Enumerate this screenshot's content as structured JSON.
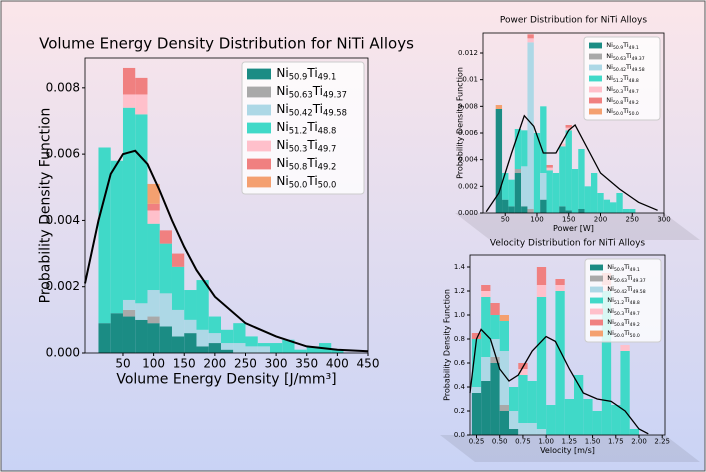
{
  "chart_data": [
    {
      "type": "histogram",
      "title": "Volume Energy Density Distribution for NiTi Alloys",
      "x_label": "Volume Energy Density [J/mm³]",
      "y_label": "Probability Density Function",
      "legend": "upper right",
      "bins": [
        10,
        30,
        50,
        70,
        90,
        110,
        130,
        150,
        170,
        190,
        210,
        230,
        250,
        270,
        290,
        310,
        330,
        350,
        370,
        390,
        410
      ],
      "xlim": [
        -12,
        450
      ],
      "xticks": [
        50,
        100,
        150,
        200,
        250,
        300,
        350,
        400,
        450
      ],
      "ylim": [
        0,
        0.0089
      ],
      "yticks": [
        {
          "value": 0,
          "label": "0.000"
        },
        0.002,
        0.004,
        0.006,
        0.008
      ],
      "series": [
        {
          "name": "Ni50.9Ti49.1",
          "color": "#1b8c84",
          "values": [
            0.0009,
            0.0012,
            0.0011,
            0.001,
            0.0009,
            0.0008,
            0.0005,
            0.0006,
            0.0002,
            0.0003,
            0.0001,
            0,
            0,
            0,
            0,
            0,
            0,
            0,
            0,
            0
          ]
        },
        {
          "name": "Ni50.63Ti49.37",
          "color": "#a9a9a9",
          "values": [
            0,
            0,
            0.0002,
            0,
            0.0002,
            0,
            0,
            0,
            0,
            0,
            0,
            0,
            0,
            0,
            0,
            0,
            0,
            0,
            0,
            0
          ]
        },
        {
          "name": "Ni50.42Ti49.58",
          "color": "#add8e6",
          "values": [
            0,
            0,
            0.0003,
            0.0005,
            0.0008,
            0.001,
            0.0008,
            0.0004,
            0.0005,
            0.0003,
            0.0002,
            0.0003,
            0.0002,
            0.0002,
            0,
            0,
            0,
            0,
            0,
            0
          ]
        },
        {
          "name": "Ni51.2Ti48.8",
          "color": "#40d9c8",
          "values": [
            0.0053,
            0.0046,
            0.0058,
            0.0057,
            0.002,
            0.0015,
            0.0013,
            0.0009,
            0.0015,
            0.0005,
            0.0004,
            0.0006,
            0.0003,
            0.0001,
            0.0003,
            0.0004,
            0.0001,
            0.0002,
            0.0003,
            0.0001
          ]
        },
        {
          "name": "Ni50.3Ti49.7",
          "color": "#ffc0cb",
          "values": [
            0,
            0,
            0.0004,
            0.0006,
            0.0004,
            0,
            0,
            0,
            0,
            0,
            0,
            0,
            0,
            0,
            0,
            0,
            0,
            0,
            0,
            0
          ]
        },
        {
          "name": "Ni50.8Ti49.2",
          "color": "#f08080",
          "values": [
            0,
            0,
            0.0008,
            0.0005,
            0.0002,
            0.0004,
            0.0004,
            0,
            0,
            0,
            0,
            0,
            0,
            0,
            0,
            0,
            0,
            0,
            0,
            0
          ]
        },
        {
          "name": "Ni50.0Ti50.0",
          "color": "#f4a070",
          "values": [
            0,
            0,
            0,
            0,
            0.0006,
            0,
            0,
            0,
            0,
            0,
            0,
            0,
            0,
            0,
            0,
            0,
            0,
            0,
            0,
            0
          ]
        }
      ],
      "kde": {
        "x": [
          -12,
          10,
          30,
          50,
          70,
          90,
          110,
          130,
          150,
          170,
          200,
          250,
          300,
          350,
          400,
          450
        ],
        "y": [
          0.0021,
          0.004,
          0.0054,
          0.006,
          0.0061,
          0.0057,
          0.0049,
          0.004,
          0.0032,
          0.0025,
          0.0017,
          0.0009,
          0.0005,
          0.0002,
          0.0001,
          5e-05
        ]
      }
    },
    {
      "type": "histogram",
      "title": "Power Distribution for NiTi Alloys",
      "x_label": "Power [W]",
      "y_label": "Probability Density Function",
      "legend": "upper right",
      "bins": [
        35,
        45,
        55,
        65,
        75,
        85,
        95,
        105,
        115,
        125,
        135,
        145,
        155,
        165,
        175,
        185,
        195,
        205,
        215,
        225,
        235,
        245,
        255
      ],
      "xlim": [
        15,
        300
      ],
      "xticks": [
        50,
        100,
        150,
        200,
        250,
        300
      ],
      "ylim": [
        0,
        0.0135
      ],
      "yticks": [
        {
          "value": 0,
          "label": "0.000"
        },
        0.002,
        0.004,
        0.006,
        0.008,
        0.01,
        0.012
      ],
      "series": [
        {
          "name": "Ni50.9Ti49.1",
          "color": "#1b8c84",
          "values": [
            0.0078,
            0.001,
            0.0005,
            0.003,
            0.0005,
            0,
            0,
            0.001,
            0,
            0,
            0.0005,
            0.0002,
            0,
            0.0003,
            0,
            0,
            0,
            0,
            0,
            0,
            0,
            0
          ]
        },
        {
          "name": "Ni50.63Ti49.37",
          "color": "#a9a9a9",
          "values": [
            0,
            0,
            0,
            0.0003,
            0,
            0.0003,
            0,
            0,
            0,
            0,
            0,
            0,
            0,
            0,
            0,
            0,
            0,
            0,
            0,
            0,
            0,
            0
          ]
        },
        {
          "name": "Ni50.42Ti49.58",
          "color": "#add8e6",
          "values": [
            0,
            0,
            0,
            0,
            0.003,
            0.0125,
            0,
            0.002,
            0,
            0,
            0,
            0,
            0,
            0,
            0,
            0,
            0,
            0,
            0,
            0,
            0,
            0
          ]
        },
        {
          "name": "Ni51.2Ti48.8",
          "color": "#40d9c8",
          "values": [
            0,
            0.002,
            0.002,
            0.003,
            0.0027,
            0,
            0.006,
            0.005,
            0.0032,
            0.003,
            0.0045,
            0.006,
            0.0033,
            0.0045,
            0.002,
            0.003,
            0.0015,
            0.001,
            0.0008,
            0.0015,
            0.0003,
            0.0003
          ]
        },
        {
          "name": "Ni50.3Ti49.7",
          "color": "#ffc0cb",
          "values": [
            0,
            0,
            0,
            0,
            0,
            0.0003,
            0,
            0,
            0.0002,
            0,
            0.0002,
            0.0002,
            0,
            0,
            0,
            0,
            0,
            0,
            0,
            0,
            0,
            0
          ]
        },
        {
          "name": "Ni50.8Ti49.2",
          "color": "#f08080",
          "values": [
            0,
            0,
            0,
            0,
            0,
            0.0003,
            0,
            0,
            0.0002,
            0,
            0,
            0.0002,
            0,
            0,
            0,
            0,
            0,
            0,
            0,
            0,
            0,
            0
          ]
        },
        {
          "name": "Ni50.0Ti50.0",
          "color": "#f4a070",
          "values": [
            0.0003,
            0,
            0,
            0,
            0,
            0,
            0,
            0,
            0,
            0,
            0,
            0,
            0,
            0,
            0,
            0,
            0,
            0,
            0,
            0,
            0,
            0
          ]
        }
      ],
      "kde": {
        "x": [
          20,
          40,
          60,
          80,
          95,
          110,
          130,
          150,
          160,
          180,
          200,
          230,
          260,
          290
        ],
        "y": [
          0.0001,
          0.0015,
          0.0045,
          0.0073,
          0.0065,
          0.0045,
          0.0045,
          0.0062,
          0.0066,
          0.0048,
          0.003,
          0.0018,
          0.0008,
          0.0002
        ]
      }
    },
    {
      "type": "histogram",
      "title": "Velocity Distribution for NiTi Alloys",
      "x_label": "Velocity [m/s]",
      "y_label": "Probability Density Function",
      "legend": "upper right",
      "bins": [
        0.2,
        0.3,
        0.4,
        0.5,
        0.6,
        0.7,
        0.8,
        0.9,
        1.0,
        1.1,
        1.2,
        1.3,
        1.4,
        1.5,
        1.6,
        1.7,
        1.8,
        1.9,
        2.0
      ],
      "xlim": [
        0.18,
        2.28
      ],
      "xticks": [
        0.25,
        {
          "value": 0.5,
          "label": "0.50"
        },
        0.75,
        {
          "value": 1,
          "label": "1.00"
        },
        1.25,
        {
          "value": 1.5,
          "label": "1.50"
        },
        1.75,
        {
          "value": 2,
          "label": "2.00"
        },
        2.25
      ],
      "ylim": [
        0,
        1.5
      ],
      "yticks": [
        {
          "value": 0,
          "label": "0.0"
        },
        0.2,
        0.4,
        0.6,
        0.8,
        {
          "value": 1,
          "label": "1.0"
        },
        1.2,
        1.4
      ],
      "series": [
        {
          "name": "Ni50.9Ti49.1",
          "color": "#1b8c84",
          "values": [
            0.35,
            0.45,
            0.6,
            0.2,
            0.05,
            0,
            0,
            0,
            0,
            0,
            0,
            0,
            0,
            0,
            0,
            0,
            0,
            0
          ]
        },
        {
          "name": "Ni50.63Ti49.37",
          "color": "#a9a9a9",
          "values": [
            0,
            0,
            0.05,
            0.05,
            0,
            0,
            0,
            0,
            0,
            0,
            0,
            0,
            0,
            0,
            0,
            0,
            0,
            0
          ]
        },
        {
          "name": "Ni50.42Ti49.58",
          "color": "#add8e6",
          "values": [
            0.05,
            0.2,
            0.15,
            0.45,
            0.15,
            0.1,
            0.1,
            0.05,
            0,
            0,
            0,
            0,
            0,
            0,
            0,
            0,
            0,
            0
          ]
        },
        {
          "name": "Ni51.2Ti48.8",
          "color": "#40d9c8",
          "values": [
            0.4,
            0.5,
            0.2,
            0.25,
            0.2,
            0.4,
            0.35,
            1.1,
            0.25,
            1.2,
            0.3,
            0.5,
            0.3,
            0.2,
            1.2,
            0.25,
            0.7,
            0.05
          ]
        },
        {
          "name": "Ni50.3Ti49.7",
          "color": "#ffc0cb",
          "values": [
            0,
            0.05,
            0,
            0,
            0,
            0.05,
            0,
            0.1,
            0,
            0.05,
            0,
            0,
            0,
            0,
            0.05,
            0,
            0.05,
            0
          ]
        },
        {
          "name": "Ni50.8Ti49.2",
          "color": "#f08080",
          "values": [
            0.05,
            0.05,
            0.1,
            0,
            0,
            0.05,
            0,
            0.15,
            0,
            0.05,
            0,
            0,
            0,
            0,
            0.1,
            0,
            0,
            0
          ]
        },
        {
          "name": "Ni50.0Ti50.0",
          "color": "#f4a070",
          "values": [
            0,
            0,
            0,
            0.05,
            0,
            0,
            0,
            0,
            0,
            0,
            0,
            0,
            0,
            0,
            0,
            0,
            0,
            0
          ]
        }
      ],
      "kde": {
        "x": [
          0.18,
          0.25,
          0.3,
          0.4,
          0.5,
          0.6,
          0.7,
          0.85,
          1.0,
          1.1,
          1.25,
          1.4,
          1.55,
          1.7,
          1.85,
          2.0,
          2.1
        ],
        "y": [
          0.35,
          0.8,
          0.88,
          0.8,
          0.55,
          0.45,
          0.5,
          0.7,
          0.82,
          0.78,
          0.55,
          0.35,
          0.3,
          0.28,
          0.2,
          0.05,
          0.01
        ]
      }
    }
  ]
}
